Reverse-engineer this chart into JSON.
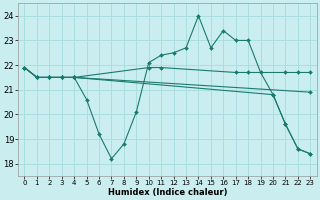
{
  "xlabel": "Humidex (Indice chaleur)",
  "bg_color": "#caeef0",
  "grid_color": "#aadee0",
  "line_color": "#1a7a6e",
  "xlim": [
    -0.5,
    23.5
  ],
  "ylim": [
    17.5,
    24.5
  ],
  "xticks": [
    0,
    1,
    2,
    3,
    4,
    5,
    6,
    7,
    8,
    9,
    10,
    11,
    12,
    13,
    14,
    15,
    16,
    17,
    18,
    19,
    20,
    21,
    22,
    23
  ],
  "yticks": [
    18,
    19,
    20,
    21,
    22,
    23,
    24
  ],
  "series": [
    {
      "x": [
        0,
        1,
        2,
        3,
        4,
        5,
        6,
        7,
        8,
        9,
        10,
        11,
        12,
        13,
        14,
        15,
        16,
        17,
        18,
        19,
        20,
        21,
        22,
        23
      ],
      "y": [
        21.9,
        21.5,
        21.5,
        21.5,
        21.5,
        20.6,
        19.2,
        18.2,
        18.8,
        20.1,
        22.1,
        22.4,
        22.5,
        22.7,
        24.0,
        22.7,
        23.4,
        23.0,
        23.0,
        21.7,
        20.8,
        19.6,
        18.6,
        18.4
      ]
    },
    {
      "x": [
        0,
        1,
        2,
        3,
        4,
        10,
        11,
        17,
        18,
        21,
        22,
        23
      ],
      "y": [
        21.9,
        21.5,
        21.5,
        21.5,
        21.5,
        21.9,
        21.9,
        21.7,
        21.7,
        21.7,
        21.7,
        21.7
      ]
    },
    {
      "x": [
        0,
        1,
        2,
        3,
        4,
        23
      ],
      "y": [
        21.9,
        21.5,
        21.5,
        21.5,
        21.5,
        20.9
      ]
    },
    {
      "x": [
        0,
        1,
        2,
        3,
        4,
        20,
        21,
        22,
        23
      ],
      "y": [
        21.9,
        21.5,
        21.5,
        21.5,
        21.5,
        20.8,
        19.6,
        18.6,
        18.4
      ]
    }
  ]
}
